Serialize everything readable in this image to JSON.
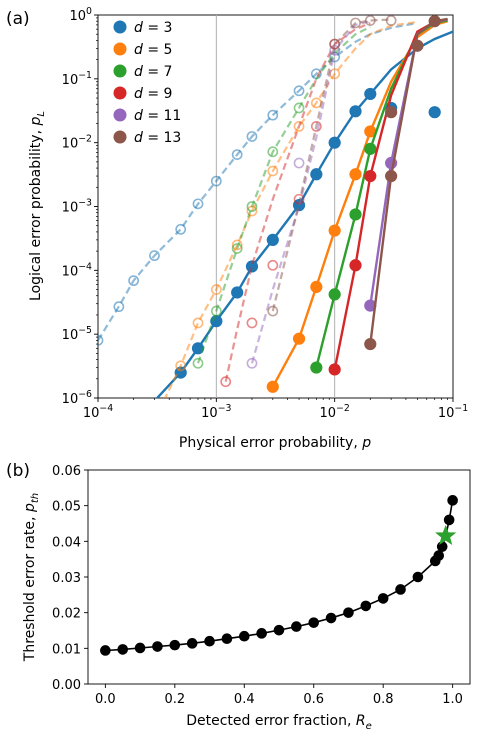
{
  "chart_data": [
    {
      "panel_label": "(a)",
      "type": "line",
      "xlabel": "Physical error probability, p",
      "ylabel": "Logical error probability, p_L",
      "xscale": "log",
      "yscale": "log",
      "xlim": [
        0.0001,
        0.1
      ],
      "ylim": [
        1e-06,
        1
      ],
      "x_tick_labels": [
        "10^-4",
        "10^-3",
        "10^-2",
        "10^-1"
      ],
      "y_tick_labels": [
        "10^-6",
        "10^-5",
        "10^-4",
        "10^-3",
        "10^-2",
        "10^-1",
        "10^0"
      ],
      "grid": "vertical lines at 10^-3 and 10^-2",
      "legend": "top-left",
      "series": [
        {
          "name": "d = 3",
          "color": "#1f77b4",
          "solid": [
            [
              0.0003,
              9e-07
            ],
            [
              0.0005,
              2.5e-06
            ],
            [
              0.0007,
              6e-06
            ],
            [
              0.001,
              1.6e-05
            ],
            [
              0.0015,
              4.5e-05
            ],
            [
              0.002,
              0.000115
            ],
            [
              0.003,
              0.0003
            ],
            [
              0.005,
              0.00105
            ],
            [
              0.007,
              0.0032
            ],
            [
              0.01,
              0.01
            ],
            [
              0.015,
              0.031
            ],
            [
              0.02,
              0.058
            ],
            [
              0.03,
              0.14
            ],
            [
              0.05,
              0.3
            ],
            [
              0.07,
              0.42
            ],
            [
              0.1,
              0.55
            ]
          ],
          "points_solid": [
            [
              0.0005,
              2.5e-06
            ],
            [
              0.0007,
              6e-06
            ],
            [
              0.001,
              1.6e-05
            ],
            [
              0.0015,
              4.5e-05
            ],
            [
              0.002,
              0.000115
            ],
            [
              0.003,
              0.0003
            ],
            [
              0.005,
              0.00105
            ],
            [
              0.007,
              0.0032
            ],
            [
              0.01,
              0.01
            ],
            [
              0.015,
              0.031
            ],
            [
              0.02,
              0.058
            ],
            [
              0.03,
              0.035
            ],
            [
              0.07,
              0.03
            ]
          ],
          "dashed": [
            [
              0.0001,
              8e-06
            ],
            [
              0.00015,
              2.7e-05
            ],
            [
              0.0002,
              6.9e-05
            ],
            [
              0.0003,
              0.00017
            ],
            [
              0.0005,
              0.00044
            ],
            [
              0.0007,
              0.0011
            ],
            [
              0.001,
              0.0025
            ],
            [
              0.0015,
              0.0065
            ],
            [
              0.002,
              0.0125
            ],
            [
              0.003,
              0.027
            ],
            [
              0.005,
              0.065
            ],
            [
              0.007,
              0.12
            ],
            [
              0.01,
              0.22
            ],
            [
              0.015,
              0.38
            ],
            [
              0.02,
              0.5
            ],
            [
              0.03,
              0.63
            ],
            [
              0.05,
              0.75
            ]
          ],
          "points_dashed": [
            [
              0.0001,
              8e-06
            ],
            [
              0.00015,
              2.7e-05
            ],
            [
              0.0002,
              6.9e-05
            ],
            [
              0.0003,
              0.00017
            ],
            [
              0.0005,
              0.00044
            ],
            [
              0.0007,
              0.0011
            ],
            [
              0.001,
              0.0025
            ],
            [
              0.0015,
              0.0065
            ],
            [
              0.002,
              0.0125
            ],
            [
              0.003,
              0.027
            ],
            [
              0.005,
              0.065
            ],
            [
              0.007,
              0.12
            ],
            [
              0.01,
              0.22
            ]
          ]
        },
        {
          "name": "d = 5",
          "color": "#ff7f0e",
          "solid": [
            [
              0.003,
              1.5e-06
            ],
            [
              0.005,
              8.5e-06
            ],
            [
              0.007,
              5.5e-05
            ],
            [
              0.01,
              0.00042
            ],
            [
              0.015,
              0.0032
            ],
            [
              0.02,
              0.015
            ],
            [
              0.03,
              0.09
            ],
            [
              0.05,
              0.45
            ],
            [
              0.07,
              0.7
            ],
            [
              0.09,
              0.8
            ]
          ],
          "points_solid": [
            [
              0.003,
              1.5e-06
            ],
            [
              0.005,
              8.5e-06
            ],
            [
              0.007,
              5.5e-05
            ],
            [
              0.01,
              0.00042
            ],
            [
              0.015,
              0.0032
            ],
            [
              0.02,
              0.015
            ]
          ],
          "dashed": [
            [
              0.0003,
              4.5e-07
            ],
            [
              0.0005,
              3.2e-06
            ],
            [
              0.0007,
              1.5e-05
            ],
            [
              0.001,
              5e-05
            ],
            [
              0.0015,
              0.00025
            ],
            [
              0.002,
              0.00085
            ],
            [
              0.003,
              0.0036
            ],
            [
              0.005,
              0.018
            ],
            [
              0.007,
              0.042
            ],
            [
              0.01,
              0.12
            ],
            [
              0.015,
              0.3
            ],
            [
              0.02,
              0.5
            ],
            [
              0.03,
              0.68
            ],
            [
              0.05,
              0.78
            ]
          ],
          "points_dashed": [
            [
              0.0005,
              3.2e-06
            ],
            [
              0.0007,
              1.5e-05
            ],
            [
              0.001,
              5e-05
            ],
            [
              0.0015,
              0.00025
            ],
            [
              0.002,
              0.00085
            ],
            [
              0.003,
              0.0036
            ],
            [
              0.005,
              0.018
            ],
            [
              0.007,
              0.042
            ],
            [
              0.01,
              0.12
            ]
          ]
        },
        {
          "name": "d = 7",
          "color": "#2ca02c",
          "solid": [
            [
              0.007,
              3e-06
            ],
            [
              0.01,
              4.2e-05
            ],
            [
              0.015,
              0.00075
            ],
            [
              0.02,
              0.008
            ],
            [
              0.03,
              0.07
            ],
            [
              0.05,
              0.5
            ],
            [
              0.07,
              0.75
            ],
            [
              0.09,
              0.82
            ]
          ],
          "points_solid": [
            [
              0.007,
              3e-06
            ],
            [
              0.01,
              4.2e-05
            ],
            [
              0.015,
              0.00075
            ],
            [
              0.02,
              0.008
            ]
          ],
          "dashed": [
            [
              0.0007,
              3.5e-06
            ],
            [
              0.001,
              2.3e-05
            ],
            [
              0.0015,
              0.00022
            ],
            [
              0.002,
              0.001
            ],
            [
              0.003,
              0.0072
            ],
            [
              0.005,
              0.035
            ],
            [
              0.007,
              0.1
            ],
            [
              0.01,
              0.25
            ],
            [
              0.015,
              0.5
            ],
            [
              0.02,
              0.65
            ]
          ],
          "points_dashed": [
            [
              0.0007,
              3.5e-06
            ],
            [
              0.001,
              2.3e-05
            ],
            [
              0.0015,
              0.00022
            ],
            [
              0.002,
              0.001
            ],
            [
              0.003,
              0.0072
            ],
            [
              0.005,
              0.035
            ]
          ]
        },
        {
          "name": "d = 9",
          "color": "#d62728",
          "solid": [
            [
              0.01,
              2.8e-06
            ],
            [
              0.015,
              0.00012
            ],
            [
              0.02,
              0.003
            ],
            [
              0.03,
              0.055
            ],
            [
              0.05,
              0.55
            ],
            [
              0.07,
              0.78
            ],
            [
              0.09,
              0.85
            ]
          ],
          "points_solid": [
            [
              0.01,
              2.8e-06
            ],
            [
              0.015,
              0.00012
            ],
            [
              0.02,
              0.003
            ]
          ],
          "dashed": [
            [
              0.0012,
              1.8e-06
            ],
            [
              0.0015,
              1.2e-05
            ],
            [
              0.002,
              0.00012
            ],
            [
              0.003,
              0.0013
            ],
            [
              0.005,
              0.018
            ],
            [
              0.007,
              0.1
            ],
            [
              0.01,
              0.35
            ],
            [
              0.015,
              0.6
            ],
            [
              0.02,
              0.75
            ]
          ],
          "points_dashed": [
            [
              0.0012,
              1.8e-06
            ],
            [
              0.002,
              1.5e-05
            ],
            [
              0.003,
              0.00012
            ],
            [
              0.005,
              0.0013
            ],
            [
              0.007,
              0.018
            ],
            [
              0.01,
              0.35
            ]
          ]
        },
        {
          "name": "d = 11",
          "color": "#9467bd",
          "solid": [
            [
              0.02,
              2.8e-05
            ],
            [
              0.03,
              0.0048
            ],
            [
              0.05,
              0.5
            ],
            [
              0.07,
              0.8
            ],
            [
              0.09,
              0.85
            ]
          ],
          "points_solid": [
            [
              0.02,
              2.8e-05
            ],
            [
              0.03,
              0.0048
            ]
          ],
          "dashed": [
            [
              0.002,
              3.5e-06
            ],
            [
              0.003,
              5e-05
            ],
            [
              0.005,
              0.001
            ],
            [
              0.007,
              0.012
            ],
            [
              0.01,
              0.28
            ],
            [
              0.015,
              0.7
            ],
            [
              0.02,
              0.8
            ]
          ],
          "points_dashed": [
            [
              0.002,
              3.5e-06
            ],
            [
              0.005,
              0.0048
            ],
            [
              0.01,
              0.28
            ]
          ]
        },
        {
          "name": "d = 13",
          "color": "#8c564b",
          "solid": [
            [
              0.02,
              7e-06
            ],
            [
              0.03,
              0.003
            ],
            [
              0.05,
              0.5
            ],
            [
              0.07,
              0.8
            ],
            [
              0.09,
              0.87
            ]
          ],
          "points_solid": [
            [
              0.02,
              7e-06
            ],
            [
              0.03,
              0.003
            ],
            [
              0.03,
              0.03
            ],
            [
              0.05,
              0.33
            ],
            [
              0.07,
              0.8
            ]
          ],
          "dashed": [
            [
              0.003,
              2.3e-05
            ],
            [
              0.005,
              0.0011
            ],
            [
              0.007,
              0.018
            ],
            [
              0.01,
              0.35
            ],
            [
              0.015,
              0.75
            ],
            [
              0.02,
              0.82
            ],
            [
              0.03,
              0.85
            ]
          ],
          "points_dashed": [
            [
              0.003,
              2.3e-05
            ],
            [
              0.01,
              0.35
            ],
            [
              0.015,
              0.75
            ],
            [
              0.02,
              0.82
            ],
            [
              0.03,
              0.82
            ]
          ]
        }
      ]
    },
    {
      "panel_label": "(b)",
      "type": "line",
      "xlabel": "Detected error fraction, R_e",
      "ylabel": "Threshold error rate, p_th",
      "xlim": [
        -0.05,
        1.05
      ],
      "ylim": [
        0.0,
        0.06
      ],
      "x_tick_labels": [
        "0.0",
        "0.2",
        "0.4",
        "0.6",
        "0.8",
        "1.0"
      ],
      "y_tick_labels": [
        "0.00",
        "0.01",
        "0.02",
        "0.03",
        "0.04",
        "0.05",
        "0.06"
      ],
      "color": "#000000",
      "x": [
        0.0,
        0.05,
        0.1,
        0.15,
        0.2,
        0.25,
        0.3,
        0.35,
        0.4,
        0.45,
        0.5,
        0.55,
        0.6,
        0.65,
        0.7,
        0.75,
        0.8,
        0.85,
        0.9,
        0.95,
        0.96,
        0.97,
        0.98,
        0.99,
        1.0
      ],
      "y": [
        0.0094,
        0.0097,
        0.0101,
        0.0105,
        0.0109,
        0.0114,
        0.012,
        0.0127,
        0.0134,
        0.0142,
        0.0151,
        0.0161,
        0.0172,
        0.0185,
        0.02,
        0.0219,
        0.024,
        0.0265,
        0.03,
        0.0345,
        0.036,
        0.0385,
        0.0415,
        0.046,
        0.0515
      ],
      "star": {
        "x": 0.98,
        "y": 0.0415,
        "color": "#2ca02c"
      }
    }
  ]
}
